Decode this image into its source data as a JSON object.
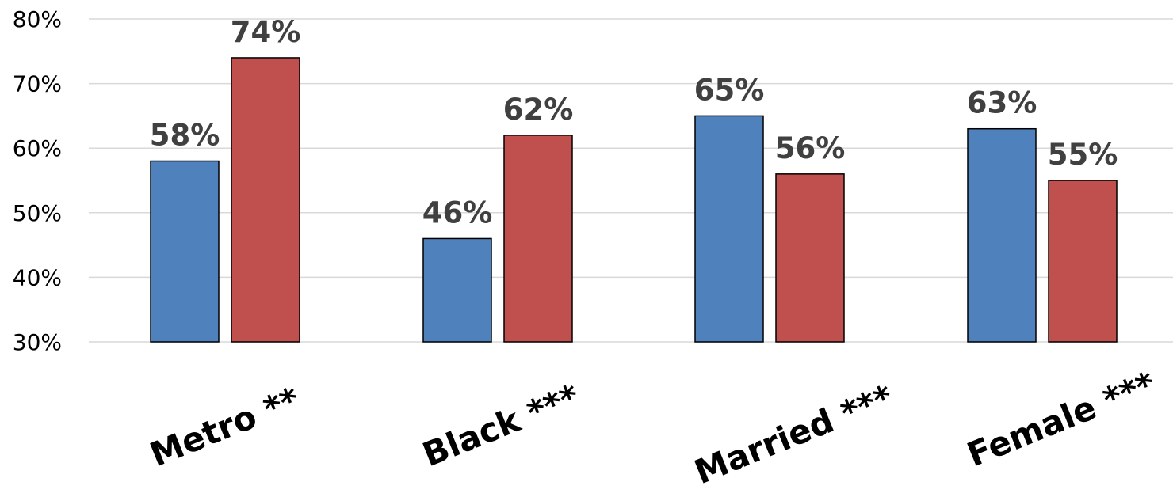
{
  "chart_data": {
    "type": "bar",
    "title": "",
    "xlabel": "",
    "ylabel": "",
    "categories": [
      "Metro **",
      "Black ***",
      "Married ***",
      "Female ***"
    ],
    "series": [
      {
        "color": "#4f81bd",
        "values": [
          58,
          46,
          65,
          63
        ],
        "labels": [
          "58%",
          "46%",
          "65%",
          "63%"
        ]
      },
      {
        "color": "#c0504d",
        "values": [
          74,
          62,
          56,
          55
        ],
        "labels": [
          "74%",
          "62%",
          "56%",
          "55%"
        ]
      }
    ],
    "ylim": [
      30,
      80
    ],
    "yticks": [
      30,
      40,
      50,
      60,
      70,
      80
    ],
    "ytick_labels": [
      "30%",
      "40%",
      "50%",
      "60%",
      "70%",
      "80%"
    ],
    "grid": true,
    "legend": "none"
  }
}
